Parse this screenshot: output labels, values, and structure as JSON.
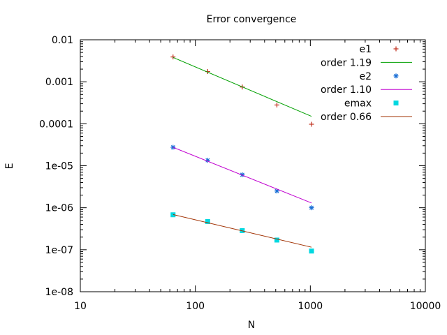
{
  "chart_data": {
    "type": "scatter",
    "title": "Error convergence",
    "xlabel": "N",
    "ylabel": "E",
    "xscale": "log",
    "yscale": "log",
    "xlim": [
      10,
      10000
    ],
    "ylim": [
      1e-08,
      0.01
    ],
    "x_ticks": [
      {
        "value": 10,
        "label": "10"
      },
      {
        "value": 100,
        "label": "100"
      },
      {
        "value": 1000,
        "label": "1000"
      },
      {
        "value": 10000,
        "label": "10000"
      }
    ],
    "y_ticks": [
      {
        "value": 0.01,
        "label": "0.01"
      },
      {
        "value": 0.001,
        "label": "0.001"
      },
      {
        "value": 0.0001,
        "label": "0.0001"
      },
      {
        "value": 1e-05,
        "label": "1e-05"
      },
      {
        "value": 1e-06,
        "label": "1e-06"
      },
      {
        "value": 1e-07,
        "label": "1e-07"
      },
      {
        "value": 1e-08,
        "label": "1e-08"
      }
    ],
    "grid": false,
    "legend_position": "top-right",
    "series": [
      {
        "name": "e1",
        "kind": "points",
        "marker": "plus",
        "color": "#c0301e",
        "x": [
          64,
          128,
          256,
          512,
          1024
        ],
        "y": [
          0.0039,
          0.00175,
          0.00075,
          0.00028,
          9.75e-05
        ]
      },
      {
        "name": "order 1.19",
        "kind": "line",
        "color": "#00a000",
        "x": [
          64,
          1024
        ],
        "y": [
          0.0038,
          0.00015
        ]
      },
      {
        "name": "e2",
        "kind": "points",
        "marker": "star",
        "color": "#1a6fd6",
        "x": [
          64,
          128,
          256,
          512,
          1024
        ],
        "y": [
          2.75e-05,
          1.35e-05,
          6.1e-06,
          2.5e-06,
          1e-06
        ]
      },
      {
        "name": "order 1.10",
        "kind": "line",
        "color": "#c000d0",
        "x": [
          64,
          1024
        ],
        "y": [
          2.75e-05,
          1.3e-06
        ]
      },
      {
        "name": "emax",
        "kind": "points",
        "marker": "square",
        "color": "#00d8e0",
        "x": [
          64,
          128,
          256,
          512,
          1024
        ],
        "y": [
          6.8e-07,
          4.7e-07,
          2.85e-07,
          1.7e-07,
          9.3e-08
        ]
      },
      {
        "name": "order 0.66",
        "kind": "line",
        "color": "#a03000",
        "x": [
          64,
          1024
        ],
        "y": [
          6.9e-07,
          1.15e-07
        ]
      }
    ]
  }
}
